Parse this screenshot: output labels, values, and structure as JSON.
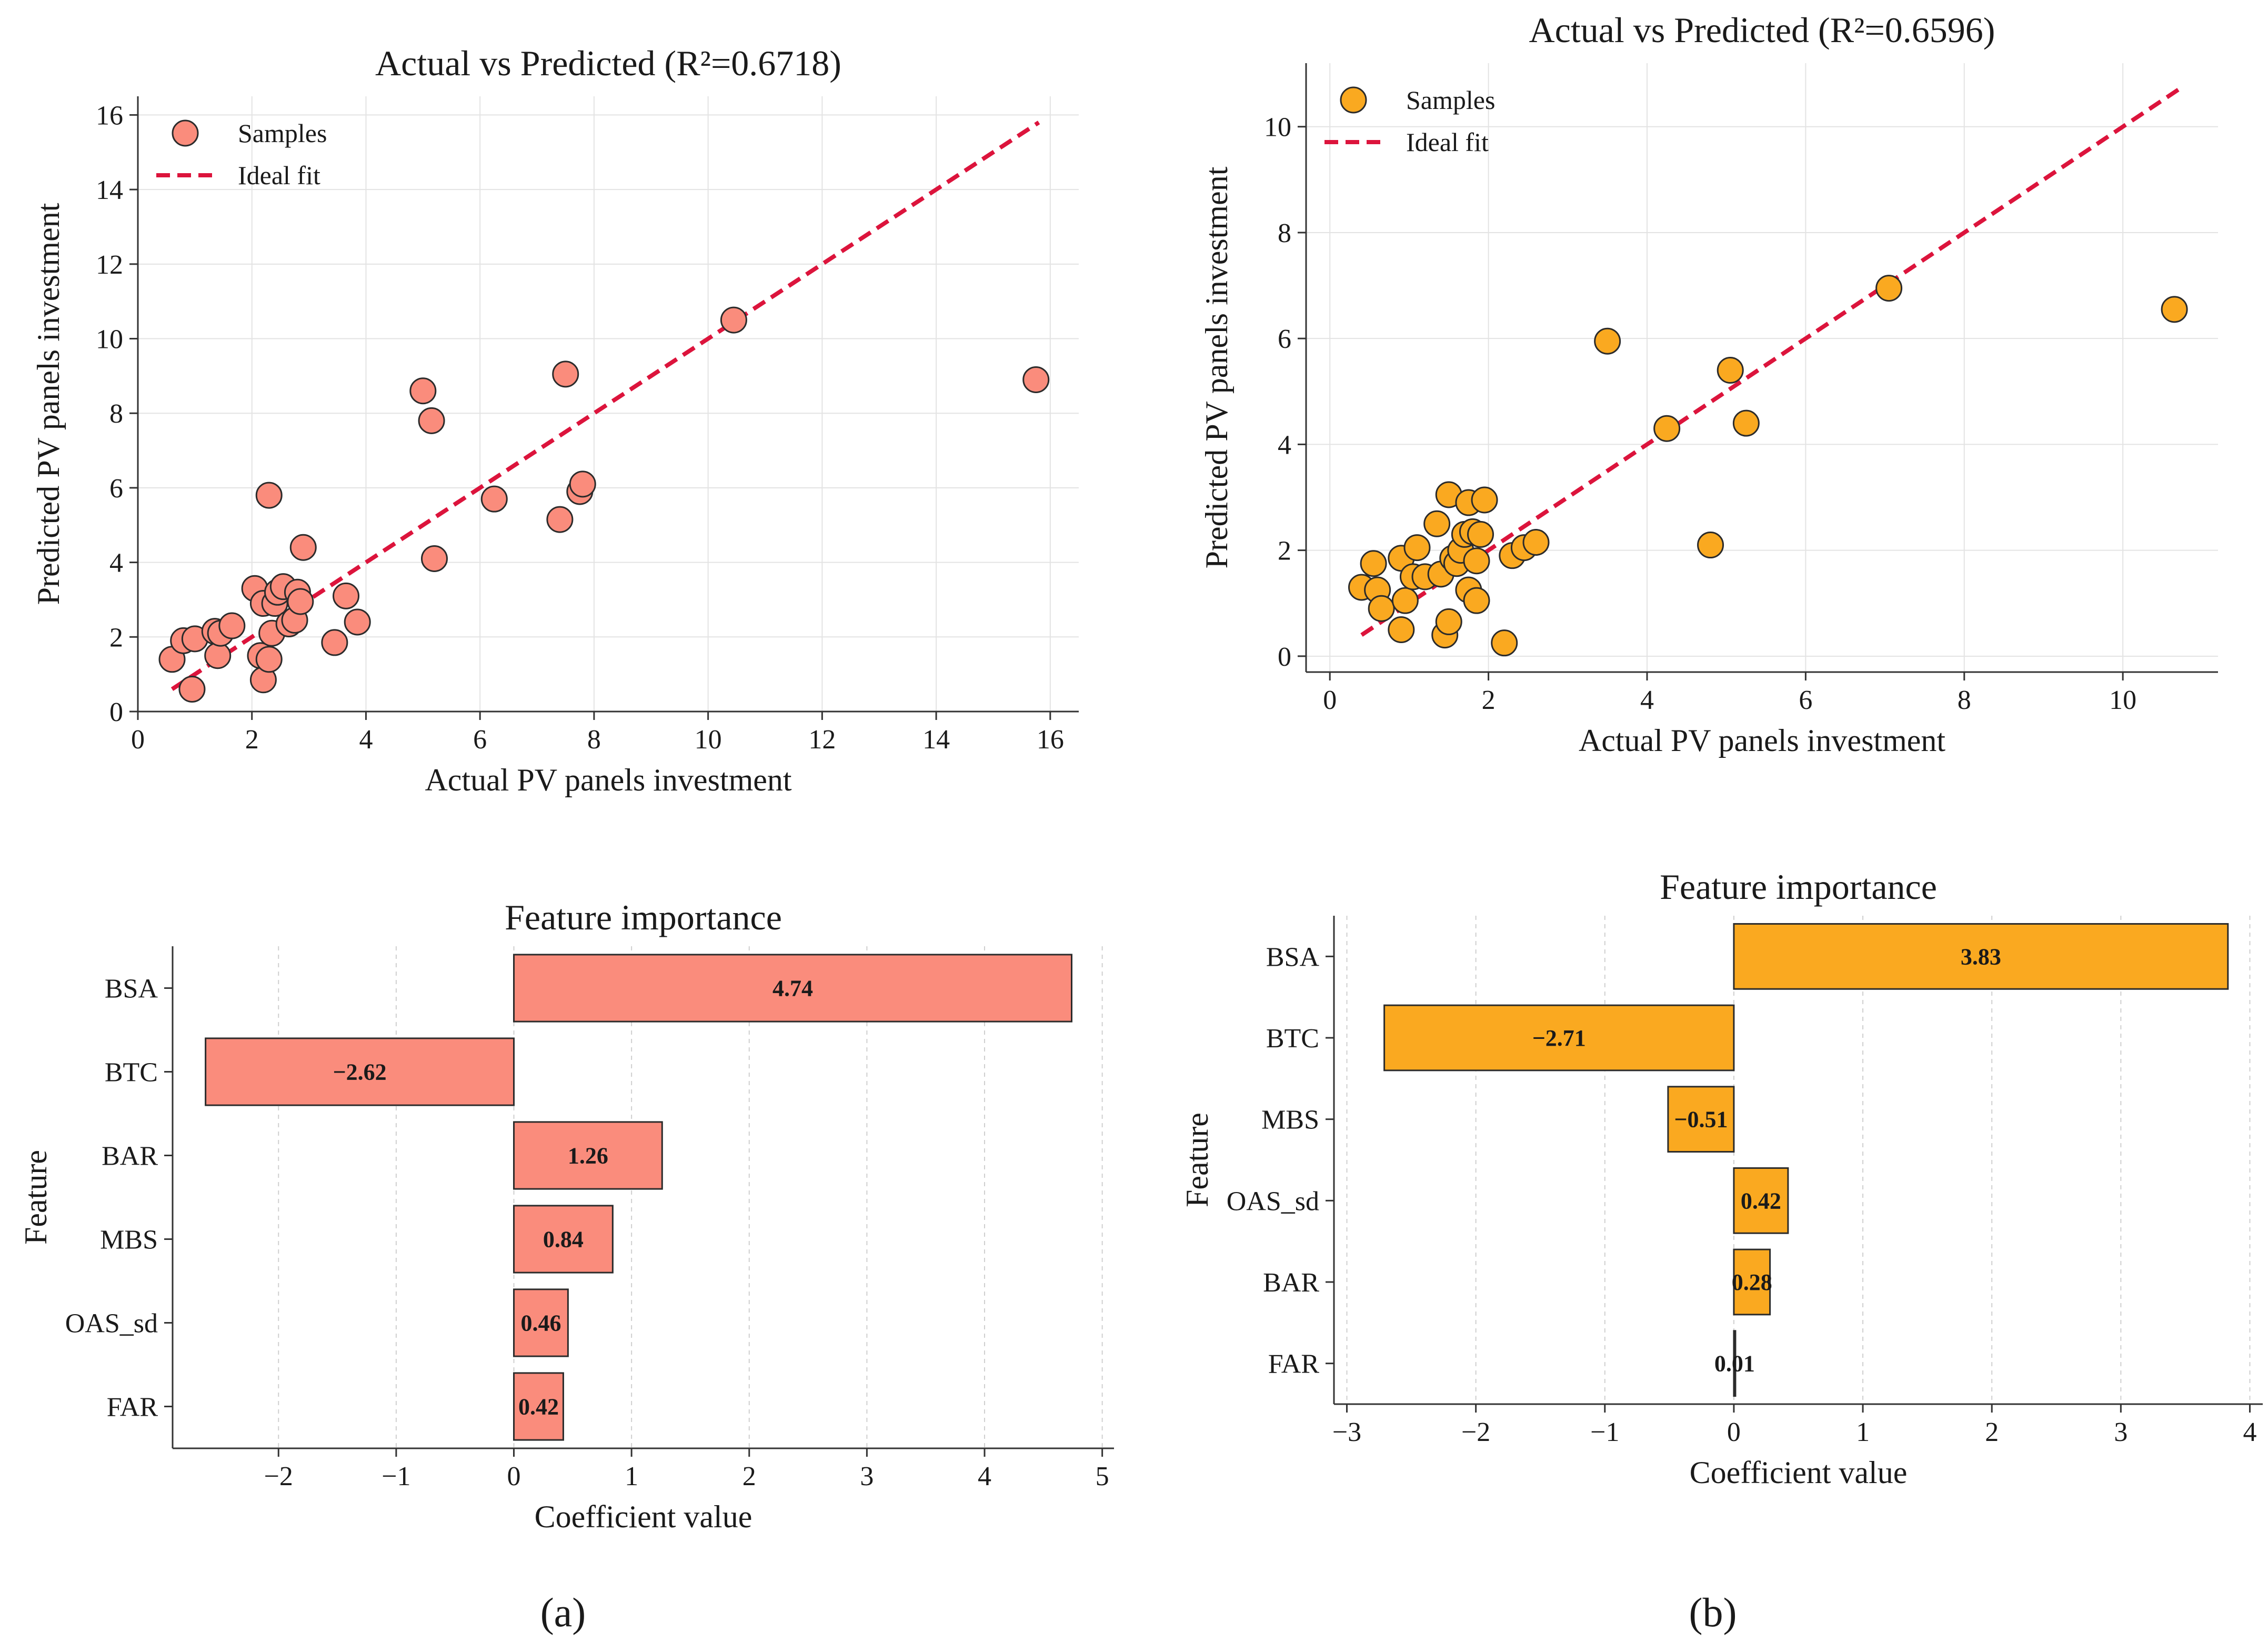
{
  "colors": {
    "salmon": "#FA8C7C",
    "orange": "#FAA920",
    "ideal": "#DC143C",
    "edge": "#2b2b2b"
  },
  "panels": [
    {
      "label": "(a)",
      "scatter": {
        "type": "scatter",
        "title": "Actual vs Predicted (R²=0.6718)",
        "xlabel": "Actual PV panels investment",
        "ylabel": "Predicted PV panels investment",
        "xlim": [
          0,
          16.5
        ],
        "ylim": [
          0,
          16.5
        ],
        "xticks": [
          0,
          2,
          4,
          6,
          8,
          10,
          12,
          14,
          16
        ],
        "yticks": [
          0,
          2,
          4,
          6,
          8,
          10,
          12,
          14,
          16
        ],
        "legend": {
          "position": "top-left",
          "samples": "Samples",
          "ideal": "Ideal fit"
        },
        "ideal_line": [
          [
            0.6,
            0.6
          ],
          [
            15.8,
            15.8
          ]
        ],
        "points": [
          [
            0.6,
            1.4
          ],
          [
            0.8,
            1.9
          ],
          [
            1.0,
            1.95
          ],
          [
            0.95,
            0.6
          ],
          [
            1.35,
            2.15
          ],
          [
            1.4,
            1.5
          ],
          [
            1.45,
            2.1
          ],
          [
            1.65,
            2.3
          ],
          [
            2.05,
            3.3
          ],
          [
            2.2,
            2.9
          ],
          [
            2.15,
            1.5
          ],
          [
            2.2,
            0.85
          ],
          [
            2.3,
            1.4
          ],
          [
            2.3,
            5.8
          ],
          [
            2.35,
            2.1
          ],
          [
            2.4,
            2.9
          ],
          [
            2.45,
            3.2
          ],
          [
            2.55,
            3.35
          ],
          [
            2.65,
            2.35
          ],
          [
            2.75,
            2.45
          ],
          [
            2.8,
            3.2
          ],
          [
            2.85,
            2.95
          ],
          [
            2.9,
            4.4
          ],
          [
            3.45,
            1.85
          ],
          [
            3.65,
            3.1
          ],
          [
            3.85,
            2.4
          ],
          [
            5.0,
            8.6
          ],
          [
            5.15,
            7.8
          ],
          [
            5.2,
            4.1
          ],
          [
            6.25,
            5.7
          ],
          [
            7.4,
            5.15
          ],
          [
            7.5,
            9.05
          ],
          [
            7.75,
            5.9
          ],
          [
            7.8,
            6.1
          ],
          [
            10.45,
            10.5
          ],
          [
            15.75,
            8.9
          ]
        ]
      },
      "bars": {
        "type": "bar",
        "title": "Feature importance",
        "xlabel": "Coefficient value",
        "ylabel": "Feature",
        "xlim": [
          -2.9,
          5.1
        ],
        "xticks": [
          "−2",
          "−1",
          "0",
          "1",
          "2",
          "3",
          "4",
          "5"
        ],
        "xtick_values": [
          -2,
          -1,
          0,
          1,
          2,
          3,
          4,
          5
        ],
        "categories": [
          "BSA",
          "BTC",
          "BAR",
          "MBS",
          "OAS_sd",
          "FAR"
        ],
        "values": [
          4.74,
          -2.62,
          1.26,
          0.84,
          0.46,
          0.42
        ],
        "value_labels": [
          "4.74",
          "−2.62",
          "1.26",
          "0.84",
          "0.46",
          "0.42"
        ]
      }
    },
    {
      "label": "(b)",
      "scatter": {
        "type": "scatter",
        "title": "Actual vs Predicted (R²=0.6596)",
        "xlabel": "Actual PV panels investment",
        "ylabel": "Predicted PV panels investment",
        "xlim": [
          -0.3,
          11.2
        ],
        "ylim": [
          -0.3,
          11.2
        ],
        "xticks": [
          0,
          2,
          4,
          6,
          8,
          10
        ],
        "yticks": [
          0,
          2,
          4,
          6,
          8,
          10
        ],
        "legend": {
          "position": "top-left",
          "samples": "Samples",
          "ideal": "Ideal fit"
        },
        "ideal_line": [
          [
            0.4,
            0.4
          ],
          [
            10.7,
            10.7
          ]
        ],
        "points": [
          [
            0.4,
            1.3
          ],
          [
            0.55,
            1.75
          ],
          [
            0.6,
            1.25
          ],
          [
            0.65,
            0.9
          ],
          [
            0.9,
            1.85
          ],
          [
            0.9,
            0.5
          ],
          [
            0.95,
            1.05
          ],
          [
            1.05,
            1.5
          ],
          [
            1.1,
            2.05
          ],
          [
            1.2,
            1.5
          ],
          [
            1.35,
            2.5
          ],
          [
            1.4,
            1.55
          ],
          [
            1.45,
            0.4
          ],
          [
            1.5,
            0.65
          ],
          [
            1.5,
            3.05
          ],
          [
            1.55,
            1.85
          ],
          [
            1.6,
            1.75
          ],
          [
            1.65,
            2.0
          ],
          [
            1.7,
            2.3
          ],
          [
            1.75,
            1.25
          ],
          [
            1.75,
            2.9
          ],
          [
            1.8,
            2.35
          ],
          [
            1.85,
            1.8
          ],
          [
            1.85,
            1.05
          ],
          [
            1.9,
            2.3
          ],
          [
            1.95,
            2.95
          ],
          [
            2.2,
            0.25
          ],
          [
            2.3,
            1.9
          ],
          [
            2.45,
            2.05
          ],
          [
            2.6,
            2.15
          ],
          [
            3.5,
            5.95
          ],
          [
            4.25,
            4.3
          ],
          [
            4.8,
            2.1
          ],
          [
            5.05,
            5.4
          ],
          [
            5.25,
            4.4
          ],
          [
            7.05,
            6.95
          ],
          [
            10.65,
            6.55
          ]
        ]
      },
      "bars": {
        "type": "bar",
        "title": "Feature importance",
        "xlabel": "Coefficient value",
        "ylabel": "Feature",
        "xlim": [
          -3.1,
          4.1
        ],
        "xticks": [
          "−3",
          "−2",
          "−1",
          "0",
          "1",
          "2",
          "3",
          "4"
        ],
        "xtick_values": [
          -3,
          -2,
          -1,
          0,
          1,
          2,
          3,
          4
        ],
        "categories": [
          "BSA",
          "BTC",
          "MBS",
          "OAS_sd",
          "BAR",
          "FAR"
        ],
        "values": [
          3.83,
          -2.71,
          -0.51,
          0.42,
          0.28,
          0.01
        ],
        "value_labels": [
          "3.83",
          "−2.71",
          "−0.51",
          "0.42",
          "0.28",
          "0.01"
        ]
      }
    }
  ]
}
